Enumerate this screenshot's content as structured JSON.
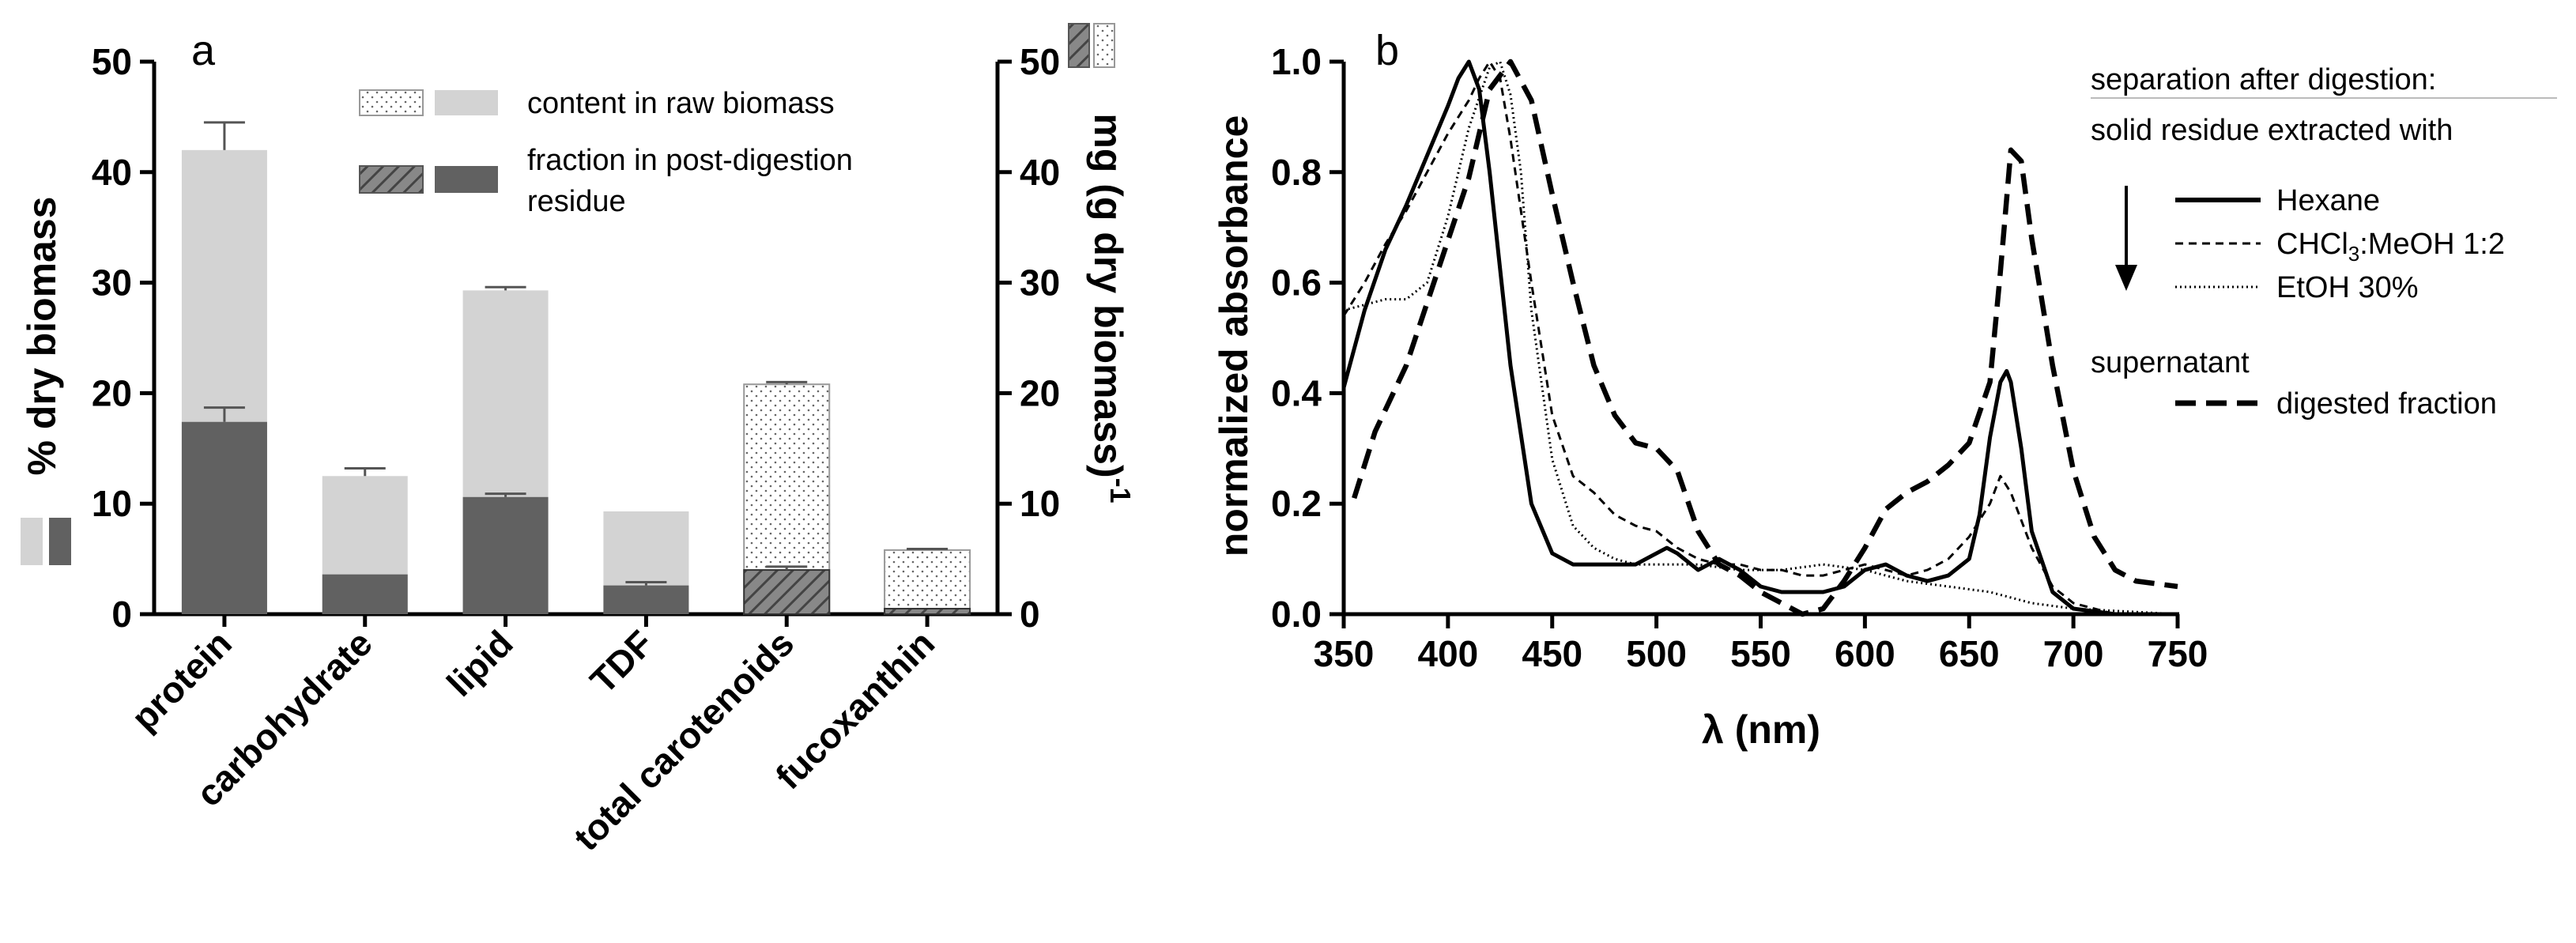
{
  "chart_data": [
    {
      "panel": "a",
      "type": "bar",
      "panel_label": "a",
      "ylabel_left": "% dry biomass",
      "ylabel_right": "mg (g dry biomass)",
      "ylabel_right_superscript": "-1",
      "ylim": [
        0,
        50
      ],
      "yticks": [
        0,
        10,
        20,
        30,
        40,
        50
      ],
      "categories": [
        "protein",
        "carbohydrate",
        "lipid",
        "TDF",
        "total carotenoids",
        "fucoxanthin"
      ],
      "axis": [
        "left",
        "left",
        "left",
        "left",
        "right",
        "right"
      ],
      "series": [
        {
          "name": "content in raw biomass",
          "values": [
            42.0,
            12.5,
            29.3,
            9.3,
            20.8,
            5.8
          ],
          "errors": [
            2.5,
            0.7,
            0.3,
            0.0,
            0.2,
            0.1
          ]
        },
        {
          "name": "fraction in post-digestion residue",
          "values": [
            17.4,
            3.6,
            10.6,
            2.6,
            4.0,
            0.5
          ],
          "errors": [
            1.3,
            0.0,
            0.3,
            0.3,
            0.3,
            0.0
          ]
        }
      ],
      "legend": {
        "raw_label": "content in raw biomass",
        "residue_label_line1": "fraction in post-digestion",
        "residue_label_line2": "residue"
      }
    },
    {
      "panel": "b",
      "type": "line",
      "panel_label": "b",
      "xlabel": "λ (nm)",
      "ylabel": "normalized absorbance",
      "xlim": [
        350,
        750
      ],
      "ylim": [
        0,
        1.0
      ],
      "xticks": [
        350,
        400,
        450,
        500,
        550,
        600,
        650,
        700,
        750
      ],
      "yticks": [
        "0.0",
        "0.2",
        "0.4",
        "0.6",
        "0.8",
        "1.0"
      ],
      "series": [
        {
          "name": "Hexane",
          "style": "solid",
          "x": [
            350,
            360,
            370,
            380,
            390,
            400,
            405,
            410,
            415,
            420,
            430,
            440,
            450,
            460,
            470,
            480,
            490,
            500,
            505,
            510,
            520,
            530,
            540,
            550,
            560,
            570,
            580,
            590,
            600,
            610,
            620,
            630,
            640,
            650,
            655,
            660,
            665,
            668,
            670,
            675,
            680,
            690,
            700,
            720,
            750
          ],
          "y": [
            0.41,
            0.55,
            0.66,
            0.74,
            0.83,
            0.92,
            0.97,
            1.0,
            0.95,
            0.8,
            0.45,
            0.2,
            0.11,
            0.09,
            0.09,
            0.09,
            0.09,
            0.11,
            0.12,
            0.11,
            0.08,
            0.1,
            0.08,
            0.05,
            0.04,
            0.04,
            0.04,
            0.05,
            0.08,
            0.09,
            0.07,
            0.06,
            0.07,
            0.1,
            0.18,
            0.32,
            0.42,
            0.44,
            0.42,
            0.3,
            0.15,
            0.04,
            0.01,
            0.0,
            0.0
          ]
        },
        {
          "name": "CHCl3:MeOH 1:2",
          "label_prefix": "CHCl",
          "label_subscript": "3",
          "label_suffix": ":MeOH 1:2",
          "style": "dashed",
          "x": [
            350,
            360,
            370,
            380,
            390,
            400,
            410,
            415,
            420,
            425,
            430,
            440,
            450,
            460,
            470,
            480,
            490,
            500,
            510,
            520,
            530,
            540,
            550,
            560,
            570,
            580,
            590,
            600,
            610,
            620,
            630,
            640,
            650,
            660,
            665,
            670,
            680,
            690,
            700,
            720,
            750
          ],
          "y": [
            0.54,
            0.6,
            0.67,
            0.73,
            0.8,
            0.87,
            0.93,
            0.97,
            1.0,
            0.97,
            0.86,
            0.6,
            0.36,
            0.25,
            0.22,
            0.18,
            0.16,
            0.15,
            0.12,
            0.1,
            0.09,
            0.09,
            0.08,
            0.08,
            0.07,
            0.07,
            0.08,
            0.09,
            0.08,
            0.07,
            0.08,
            0.1,
            0.14,
            0.2,
            0.25,
            0.22,
            0.12,
            0.05,
            0.02,
            0.0,
            0.0
          ]
        },
        {
          "name": "EtOH 30%",
          "style": "dotted",
          "x": [
            350,
            360,
            370,
            380,
            390,
            400,
            410,
            420,
            425,
            430,
            435,
            440,
            450,
            460,
            470,
            480,
            490,
            500,
            520,
            540,
            560,
            580,
            600,
            620,
            640,
            660,
            670,
            680,
            700,
            750
          ],
          "y": [
            0.55,
            0.56,
            0.57,
            0.57,
            0.6,
            0.72,
            0.88,
            0.99,
            1.0,
            0.94,
            0.8,
            0.55,
            0.28,
            0.16,
            0.12,
            0.1,
            0.09,
            0.09,
            0.09,
            0.08,
            0.08,
            0.09,
            0.08,
            0.06,
            0.05,
            0.04,
            0.03,
            0.02,
            0.01,
            0.0
          ]
        },
        {
          "name": "digested fraction",
          "style": "long-dashed",
          "x": [
            355,
            365,
            380,
            395,
            410,
            420,
            430,
            440,
            450,
            460,
            470,
            480,
            490,
            500,
            510,
            520,
            530,
            540,
            550,
            560,
            570,
            580,
            590,
            600,
            610,
            620,
            630,
            640,
            650,
            660,
            665,
            670,
            675,
            680,
            690,
            700,
            710,
            720,
            730,
            750
          ],
          "y": [
            0.21,
            0.33,
            0.45,
            0.62,
            0.79,
            0.95,
            1.0,
            0.93,
            0.76,
            0.6,
            0.45,
            0.36,
            0.31,
            0.3,
            0.26,
            0.15,
            0.09,
            0.07,
            0.04,
            0.02,
            0.0,
            0.01,
            0.06,
            0.12,
            0.19,
            0.22,
            0.24,
            0.27,
            0.31,
            0.42,
            0.62,
            0.84,
            0.82,
            0.68,
            0.45,
            0.26,
            0.14,
            0.08,
            0.06,
            0.05
          ]
        }
      ],
      "legend": {
        "heading_line1": "separation after digestion:",
        "heading_line2": "solid residue extracted with",
        "supernatant_heading": "supernatant"
      }
    }
  ]
}
